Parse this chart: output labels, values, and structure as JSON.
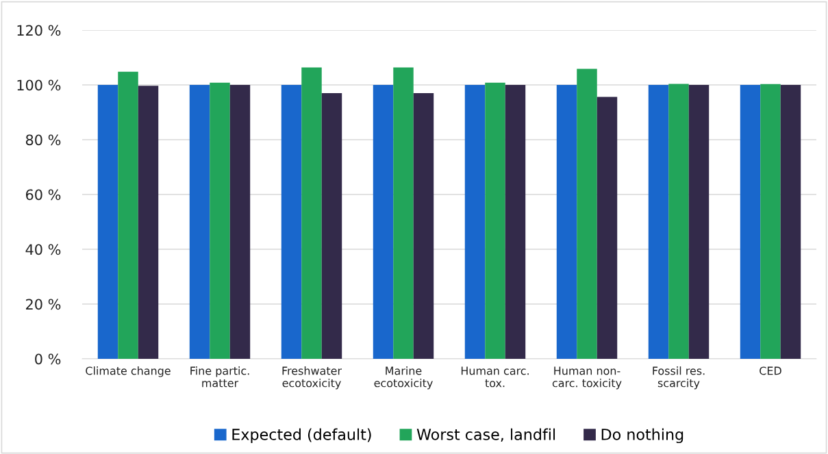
{
  "chart_data": {
    "type": "bar",
    "categories": [
      "Climate change",
      "Fine partic.\nmatter",
      "Freshwater\necotoxicity",
      "Marine\necotoxicity",
      "Human carc.\ntox.",
      "Human non-\ncarc. toxicity",
      "Fossil res.\nscarcity",
      "CED"
    ],
    "series": [
      {
        "name": "Expected (default)",
        "color": "#1967cc",
        "values": [
          100,
          100,
          100,
          100,
          100,
          100,
          100,
          100
        ]
      },
      {
        "name": "Worst case, landfil",
        "color": "#22a55a",
        "values": [
          104.8,
          100.8,
          106.4,
          106.4,
          100.8,
          105.9,
          100.4,
          100.3
        ]
      },
      {
        "name": "Do nothing",
        "color": "#332a4a",
        "values": [
          99.7,
          100,
          97,
          97,
          100,
          95.6,
          100,
          100
        ]
      }
    ],
    "ylim": [
      0,
      120
    ],
    "yticks": [
      {
        "value": 0,
        "label": "0 %"
      },
      {
        "value": 20,
        "label": "20 %"
      },
      {
        "value": 40,
        "label": "40 %"
      },
      {
        "value": 60,
        "label": "60 %"
      },
      {
        "value": 80,
        "label": "80 %"
      },
      {
        "value": 100,
        "label": "100 %"
      },
      {
        "value": 120,
        "label": "120 %"
      }
    ],
    "grid": "y",
    "legend": "bottom"
  }
}
